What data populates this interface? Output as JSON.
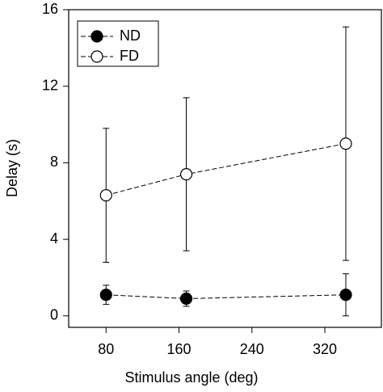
{
  "chart_data": {
    "type": "line",
    "x_label": "Stimulus angle (deg)",
    "y_label": "Delay (s)",
    "xlim": [
      39,
      382
    ],
    "xticks": [
      80,
      160,
      240,
      320
    ],
    "ylim": [
      -0.6,
      16
    ],
    "yticks": [
      0,
      4,
      8,
      12,
      16
    ],
    "legend_position": "upper left",
    "series": [
      {
        "name": "ND",
        "color": "#000000",
        "marker_fill": "#000000",
        "x": [
          80,
          168,
          343
        ],
        "values": [
          1.1,
          0.9,
          1.1
        ],
        "errors": [
          0.5,
          0.4,
          1.1
        ]
      },
      {
        "name": "FD",
        "color": "#000000",
        "marker_fill": "#ffffff",
        "x": [
          80,
          168,
          343
        ],
        "values": [
          6.3,
          7.4,
          9.0
        ],
        "errors": [
          3.5,
          4.0,
          6.1
        ]
      }
    ]
  }
}
